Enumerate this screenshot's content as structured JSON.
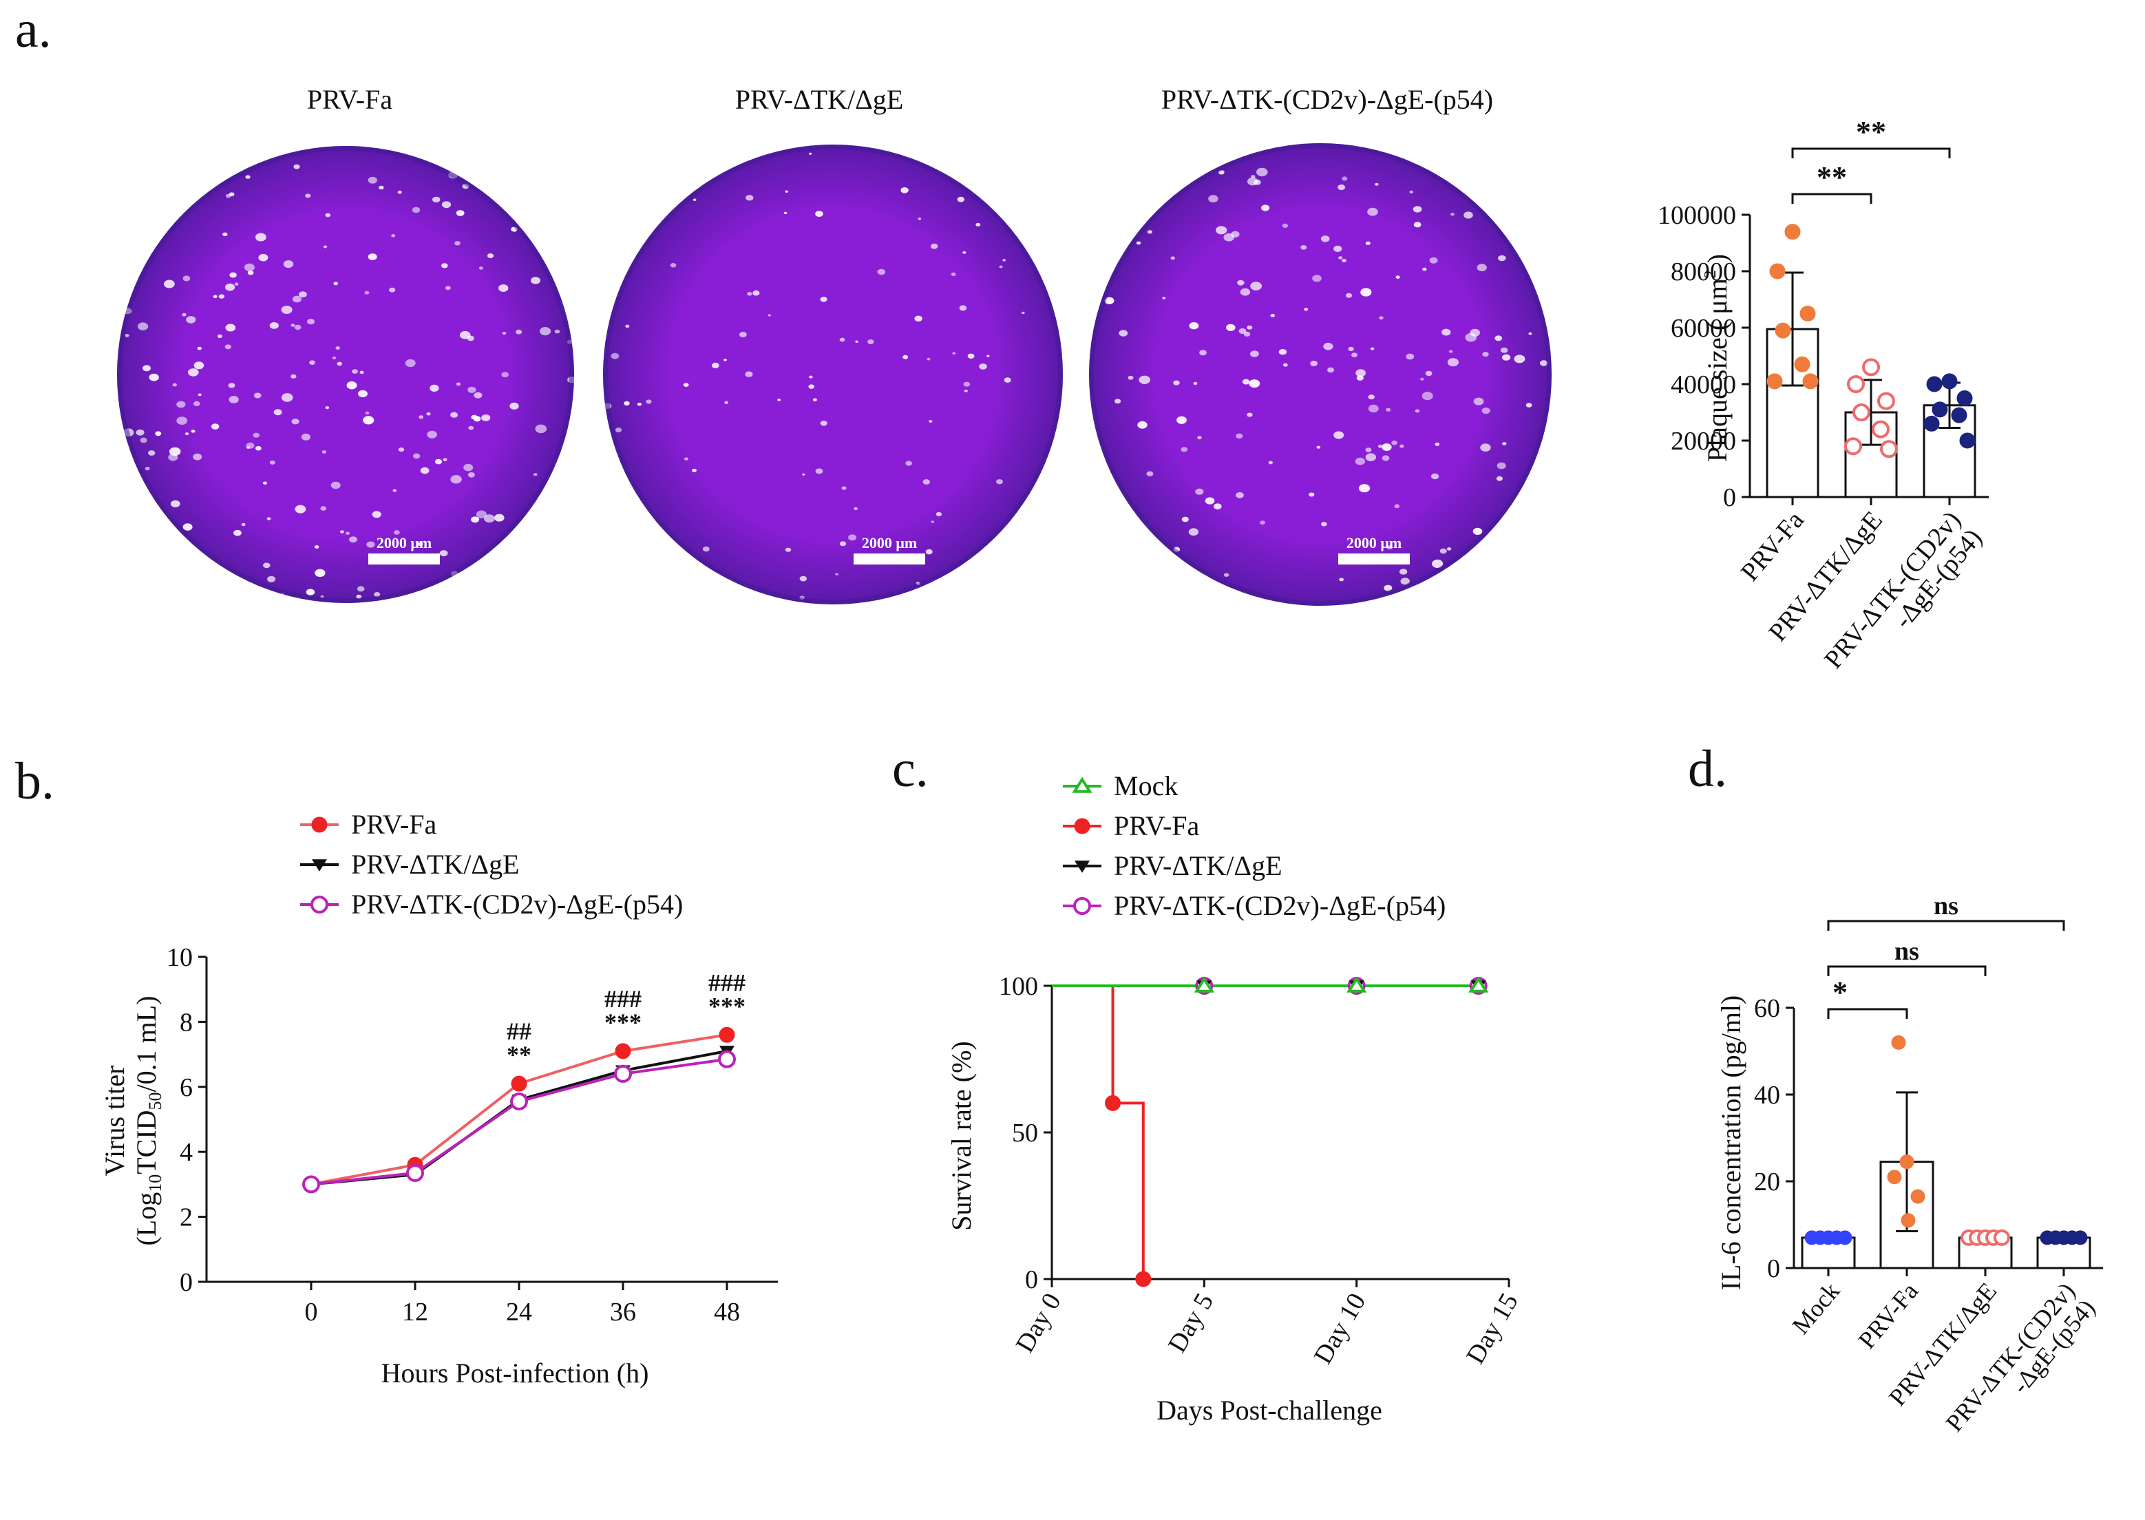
{
  "panel_labels": [
    "a.",
    "b.",
    "c.",
    "d."
  ],
  "colors": {
    "fa": "#f07a3a",
    "red": "#ee2222",
    "tkge_open": "#f06a6a",
    "p54": "#1a237e",
    "mock": "#3344ff",
    "green": "#22bb22",
    "purple": "#bb22bb",
    "black": "#111111",
    "dish": "#8a1ed6",
    "dish_edge": "#3d1a8f"
  },
  "dishes": {
    "titles": [
      "PRV-Fa",
      "PRV-ΔTK/ΔgE",
      "PRV-ΔTK-(CD2v)-ΔgE-(p54)"
    ],
    "scalebar_label": "2000 μm"
  },
  "chart_data": [
    {
      "id": "a",
      "type": "bar",
      "ylabel": "Plaque size ( μm² )",
      "ylabel_main": "Plaque size ( μm",
      "ylabel_sup": "2",
      "ylabel_end": " )",
      "ylim": [
        0,
        100000
      ],
      "yticks": [
        0,
        20000,
        40000,
        60000,
        80000,
        100000
      ],
      "categories": [
        "PRV-Fa",
        "PRV-ΔTK/ΔgE",
        "PRV-ΔTK-(CD2v)-ΔgE-(p54)"
      ],
      "category_lines": [
        [
          "PRV-Fa"
        ],
        [
          "PRV-ΔTK/ΔgE"
        ],
        [
          "PRV-ΔTK-(CD2v)",
          "-ΔgE-(p54)"
        ]
      ],
      "means": [
        59500,
        30000,
        32500
      ],
      "sd": [
        20000,
        11500,
        8000
      ],
      "points": [
        [
          94000,
          80000,
          65000,
          59000,
          47000,
          41000,
          41000
        ],
        [
          46000,
          40000,
          34000,
          30000,
          24000,
          18000,
          17000
        ],
        [
          41000,
          40000,
          35000,
          31000,
          29000,
          26000,
          20000
        ]
      ],
      "point_style": [
        "filled",
        "open",
        "filled"
      ],
      "significance": [
        {
          "from": 0,
          "to": 1,
          "label": "**"
        },
        {
          "from": 0,
          "to": 2,
          "label": "**"
        }
      ]
    },
    {
      "id": "b",
      "type": "line",
      "xlabel": "Hours Post-infection (h)",
      "ylabel_line1": "Virus titer",
      "ylabel_line2_pre": "(Log",
      "ylabel_line2_sub1": "10",
      "ylabel_line2_mid": "TCID",
      "ylabel_line2_sub2": "50",
      "ylabel_line2_post": "/0.1 mL)",
      "x": [
        0,
        12,
        24,
        36,
        48
      ],
      "xlim": [
        0,
        48
      ],
      "ylim": [
        0,
        10
      ],
      "yticks": [
        0,
        2,
        4,
        6,
        8,
        10
      ],
      "series": [
        {
          "name": "PRV-Fa",
          "values": [
            3.0,
            3.6,
            6.1,
            7.1,
            7.6
          ]
        },
        {
          "name": "PRV-ΔTK/ΔgE",
          "values": [
            3.0,
            3.3,
            5.6,
            6.5,
            7.1
          ]
        },
        {
          "name": "PRV-ΔTK-(CD2v)-ΔgE-(p54)",
          "values": [
            3.0,
            3.35,
            5.55,
            6.4,
            6.85
          ]
        }
      ],
      "annotations": [
        {
          "x": 24,
          "lines": [
            "##",
            "**"
          ]
        },
        {
          "x": 36,
          "lines": [
            "###",
            "***"
          ]
        },
        {
          "x": 48,
          "lines": [
            "###",
            "***"
          ]
        }
      ]
    },
    {
      "id": "c",
      "type": "line",
      "xlabel": "Days Post-challenge",
      "ylabel": "Survival rate (%)",
      "xlim": [
        0,
        15
      ],
      "xticks": [
        0,
        5,
        10,
        15
      ],
      "xtick_labels": [
        "Day 0",
        "Day 5",
        "Day 10",
        "Day 15"
      ],
      "ylim": [
        0,
        100
      ],
      "yticks": [
        0,
        50,
        100
      ],
      "series": [
        {
          "name": "Mock",
          "x": [
            0,
            5,
            10,
            14
          ],
          "values": [
            100,
            100,
            100,
            100
          ]
        },
        {
          "name": "PRV-Fa",
          "x": [
            0,
            2,
            3
          ],
          "values": [
            100,
            60,
            0
          ]
        },
        {
          "name": "PRV-ΔTK/ΔgE",
          "x": [
            0,
            5,
            10,
            14
          ],
          "values": [
            100,
            100,
            100,
            100
          ]
        },
        {
          "name": "PRV-ΔTK-(CD2v)-ΔgE-(p54)",
          "x": [
            0,
            5,
            10,
            14
          ],
          "values": [
            100,
            100,
            100,
            100
          ]
        }
      ]
    },
    {
      "id": "d",
      "type": "bar",
      "ylabel": "IL-6 concentration (pg/ml)",
      "ylim": [
        0,
        60
      ],
      "yticks": [
        0,
        20,
        40,
        60
      ],
      "categories": [
        "Mock",
        "PRV-Fa",
        "PRV-ΔTK/ΔgE",
        "PRV-ΔTK-(CD2v)-ΔgE-(p54)"
      ],
      "category_lines": [
        [
          "Mock"
        ],
        [
          "PRV-Fa"
        ],
        [
          "PRV-ΔTK/ΔgE"
        ],
        [
          "PRV-ΔTK-(CD2v)",
          "-ΔgE-(p54)"
        ]
      ],
      "means": [
        7,
        24.5,
        7,
        7
      ],
      "sd": [
        0,
        16,
        0,
        0
      ],
      "points": [
        [
          7,
          7,
          7,
          7,
          7
        ],
        [
          52,
          24.5,
          21,
          16.5,
          11
        ],
        [
          7,
          7,
          7,
          7,
          7
        ],
        [
          7,
          7,
          7,
          7,
          7
        ]
      ],
      "point_style": [
        "filled",
        "filled",
        "open",
        "filled"
      ],
      "significance": [
        {
          "from": 0,
          "to": 1,
          "label": "*"
        },
        {
          "from": 0,
          "to": 2,
          "label": "ns"
        },
        {
          "from": 0,
          "to": 3,
          "label": "ns"
        }
      ]
    }
  ]
}
